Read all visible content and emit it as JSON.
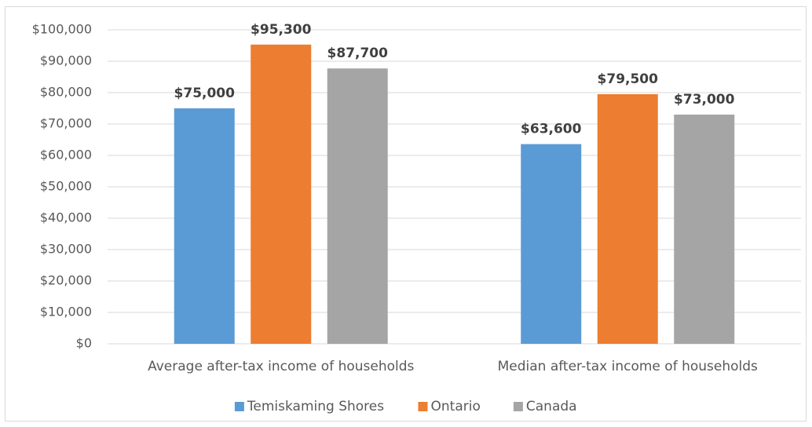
{
  "chart_data": {
    "type": "bar",
    "categories": [
      "Average after-tax income of households",
      "Median after-tax income of households"
    ],
    "series": [
      {
        "name": "Temiskaming Shores",
        "color": "#5b9bd5",
        "values": [
          75000,
          63600
        ],
        "value_labels": [
          "$75,000",
          "$63,600"
        ]
      },
      {
        "name": "Ontario",
        "color": "#ed7d31",
        "values": [
          95300,
          79500
        ],
        "value_labels": [
          "$95,300",
          "$79,500"
        ]
      },
      {
        "name": "Canada",
        "color": "#a5a5a5",
        "values": [
          87700,
          73000
        ],
        "value_labels": [
          "$87,700",
          "$73,000"
        ]
      }
    ],
    "ylim": [
      0,
      100000
    ],
    "yticks": [
      {
        "value": 0,
        "label": "$0"
      },
      {
        "value": 10000,
        "label": "$10,000"
      },
      {
        "value": 20000,
        "label": "$20,000"
      },
      {
        "value": 30000,
        "label": "$30,000"
      },
      {
        "value": 40000,
        "label": "$40,000"
      },
      {
        "value": 50000,
        "label": "$50,000"
      },
      {
        "value": 60000,
        "label": "$60,000"
      },
      {
        "value": 70000,
        "label": "$70,000"
      },
      {
        "value": 80000,
        "label": "$80,000"
      },
      {
        "value": 90000,
        "label": "$90,000"
      },
      {
        "value": 100000,
        "label": "$100,000"
      }
    ],
    "grid": true,
    "legend": "bottom"
  }
}
